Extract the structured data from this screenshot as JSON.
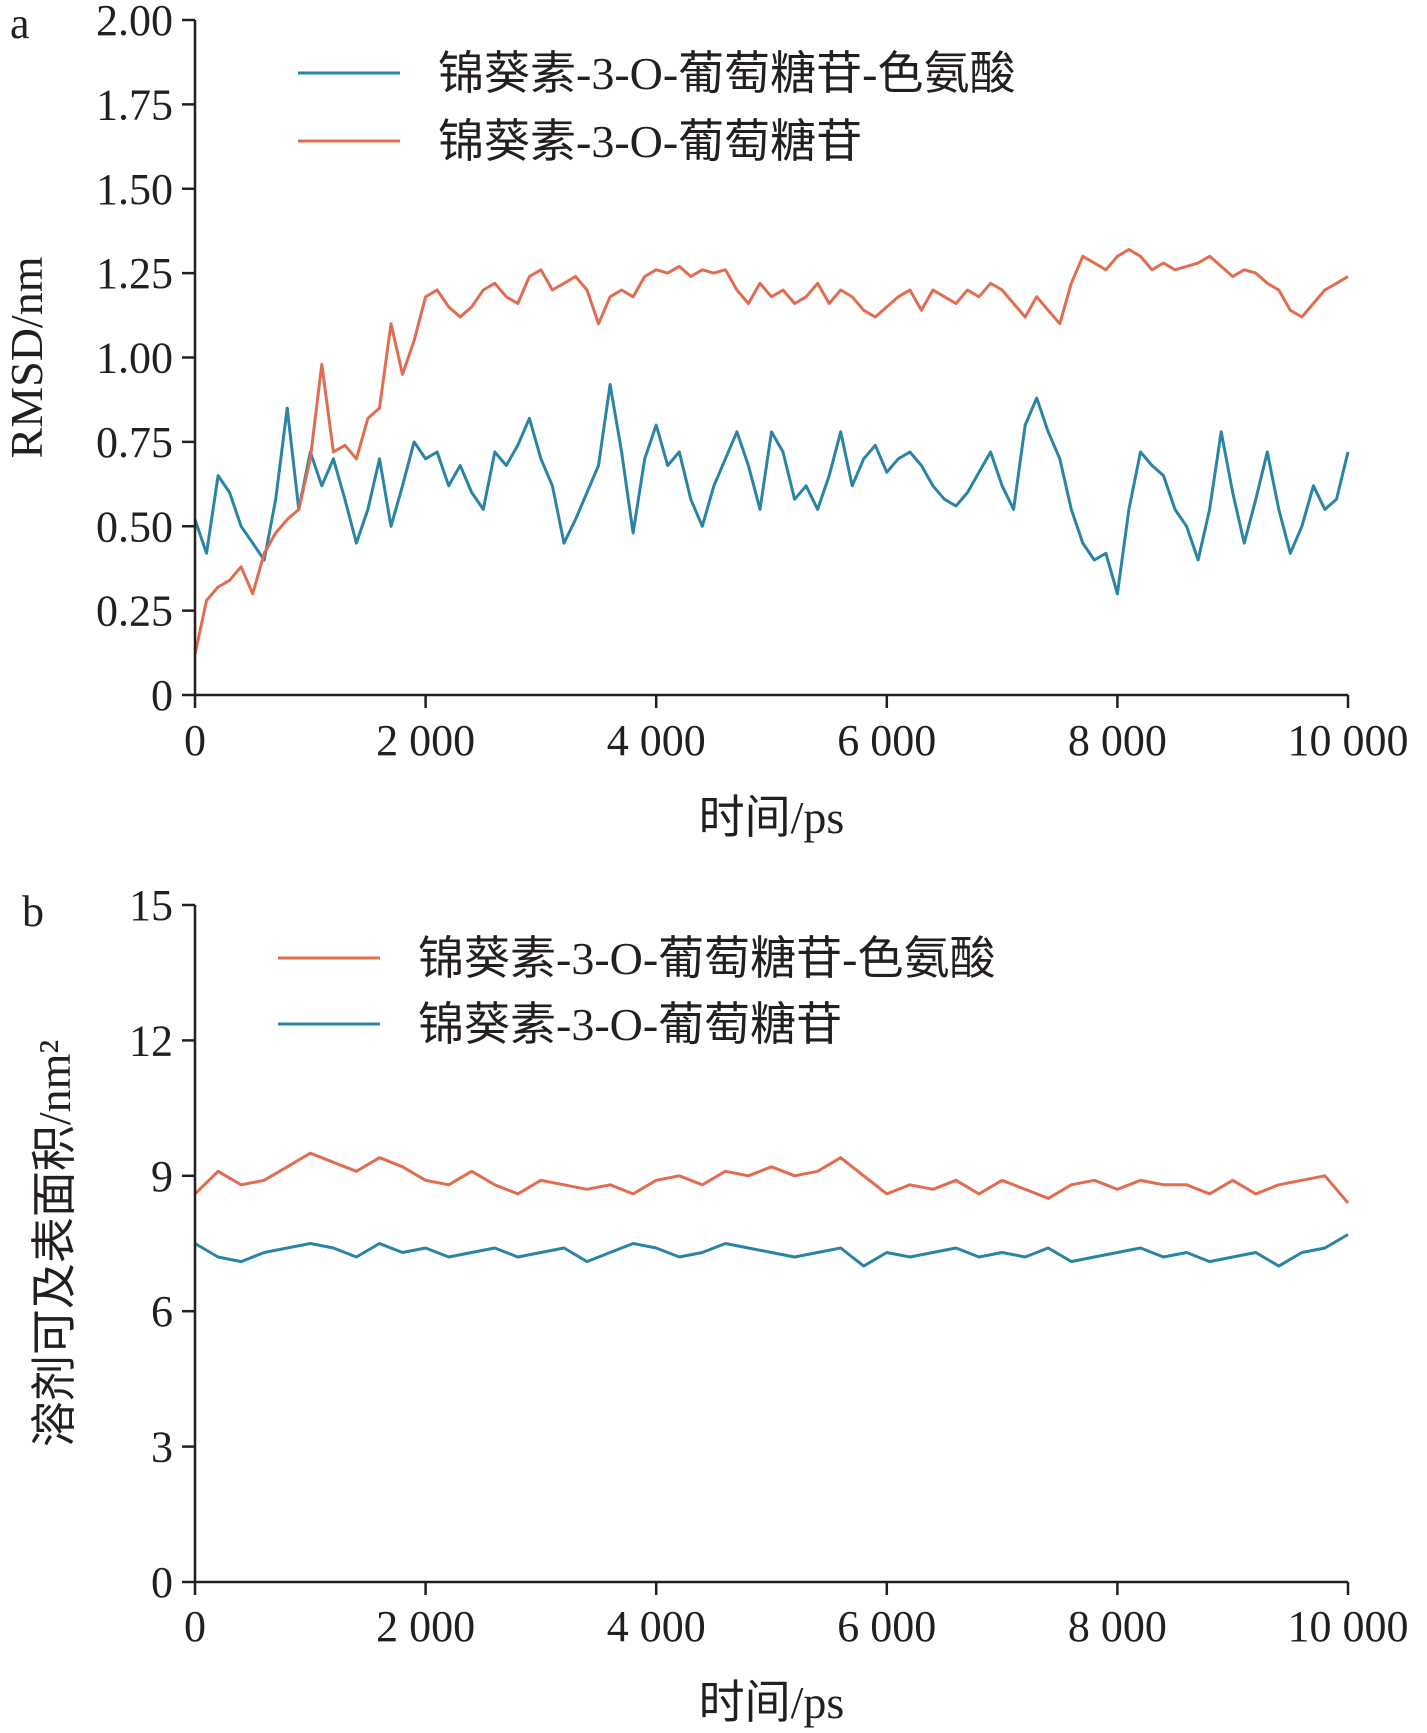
{
  "colors": {
    "blue": "#2a84a6",
    "orange": "#e26c4f",
    "axis": "#231f20"
  },
  "chart_data": [
    {
      "type": "line",
      "panel_label": "a",
      "xlabel": "时间/ps",
      "ylabel": "RMSD/nm",
      "xlim": [
        0,
        10000
      ],
      "ylim": [
        0,
        2.0
      ],
      "x_ticks": [
        0,
        2000,
        4000,
        6000,
        8000,
        10000
      ],
      "x_tick_labels": [
        "0",
        "2 000",
        "4 000",
        "6 000",
        "8 000",
        "10 000"
      ],
      "y_ticks": [
        0,
        0.25,
        0.5,
        0.75,
        1.0,
        1.25,
        1.5,
        1.75,
        2.0
      ],
      "y_tick_labels": [
        "0",
        "0.25",
        "0.50",
        "0.75",
        "1.00",
        "1.25",
        "1.50",
        "1.75",
        "2.00"
      ],
      "grid": false,
      "legend_position": "top",
      "series": [
        {
          "name": "锦葵素-3-O-葡萄糖苷-色氨酸",
          "color": "#2a84a6",
          "x": [
            0,
            100,
            200,
            300,
            400,
            500,
            600,
            700,
            800,
            900,
            1000,
            1100,
            1200,
            1300,
            1400,
            1500,
            1600,
            1700,
            1800,
            1900,
            2000,
            2100,
            2200,
            2300,
            2400,
            2500,
            2600,
            2700,
            2800,
            2900,
            3000,
            3100,
            3200,
            3300,
            3400,
            3500,
            3600,
            3700,
            3800,
            3900,
            4000,
            4100,
            4200,
            4300,
            4400,
            4500,
            4600,
            4700,
            4800,
            4900,
            5000,
            5100,
            5200,
            5300,
            5400,
            5500,
            5600,
            5700,
            5800,
            5900,
            6000,
            6100,
            6200,
            6300,
            6400,
            6500,
            6600,
            6700,
            6800,
            6900,
            7000,
            7100,
            7200,
            7300,
            7400,
            7500,
            7600,
            7700,
            7800,
            7900,
            8000,
            8100,
            8200,
            8300,
            8400,
            8500,
            8600,
            8700,
            8800,
            8900,
            9000,
            9100,
            9200,
            9300,
            9400,
            9500,
            9600,
            9700,
            9800,
            9900,
            10000
          ],
          "y": [
            0.52,
            0.42,
            0.65,
            0.6,
            0.5,
            0.45,
            0.4,
            0.58,
            0.85,
            0.55,
            0.72,
            0.62,
            0.7,
            0.58,
            0.45,
            0.55,
            0.7,
            0.5,
            0.62,
            0.75,
            0.7,
            0.72,
            0.62,
            0.68,
            0.6,
            0.55,
            0.72,
            0.68,
            0.74,
            0.82,
            0.7,
            0.62,
            0.45,
            0.52,
            0.6,
            0.68,
            0.92,
            0.72,
            0.48,
            0.7,
            0.8,
            0.68,
            0.72,
            0.58,
            0.5,
            0.62,
            0.7,
            0.78,
            0.68,
            0.55,
            0.78,
            0.72,
            0.58,
            0.62,
            0.55,
            0.65,
            0.78,
            0.62,
            0.7,
            0.74,
            0.66,
            0.7,
            0.72,
            0.68,
            0.62,
            0.58,
            0.56,
            0.6,
            0.66,
            0.72,
            0.62,
            0.55,
            0.8,
            0.88,
            0.78,
            0.7,
            0.55,
            0.45,
            0.4,
            0.42,
            0.3,
            0.55,
            0.72,
            0.68,
            0.65,
            0.55,
            0.5,
            0.4,
            0.55,
            0.78,
            0.6,
            0.45,
            0.58,
            0.72,
            0.55,
            0.42,
            0.5,
            0.62,
            0.55,
            0.58,
            0.72
          ]
        },
        {
          "name": "锦葵素-3-O-葡萄糖苷",
          "color": "#e26c4f",
          "x": [
            0,
            100,
            200,
            300,
            400,
            500,
            600,
            700,
            800,
            900,
            1000,
            1100,
            1200,
            1300,
            1400,
            1500,
            1600,
            1700,
            1800,
            1900,
            2000,
            2100,
            2200,
            2300,
            2400,
            2500,
            2600,
            2700,
            2800,
            2900,
            3000,
            3100,
            3200,
            3300,
            3400,
            3500,
            3600,
            3700,
            3800,
            3900,
            4000,
            4100,
            4200,
            4300,
            4400,
            4500,
            4600,
            4700,
            4800,
            4900,
            5000,
            5100,
            5200,
            5300,
            5400,
            5500,
            5600,
            5700,
            5800,
            5900,
            6000,
            6100,
            6200,
            6300,
            6400,
            6500,
            6600,
            6700,
            6800,
            6900,
            7000,
            7100,
            7200,
            7300,
            7400,
            7500,
            7600,
            7700,
            7800,
            7900,
            8000,
            8100,
            8200,
            8300,
            8400,
            8500,
            8600,
            8700,
            8800,
            8900,
            9000,
            9100,
            9200,
            9300,
            9400,
            9500,
            9600,
            9700,
            9800,
            9900,
            10000
          ],
          "y": [
            0.12,
            0.28,
            0.32,
            0.34,
            0.38,
            0.3,
            0.42,
            0.48,
            0.52,
            0.55,
            0.7,
            0.98,
            0.72,
            0.74,
            0.7,
            0.82,
            0.85,
            1.1,
            0.95,
            1.05,
            1.18,
            1.2,
            1.15,
            1.12,
            1.15,
            1.2,
            1.22,
            1.18,
            1.16,
            1.24,
            1.26,
            1.2,
            1.22,
            1.24,
            1.2,
            1.1,
            1.18,
            1.2,
            1.18,
            1.24,
            1.26,
            1.25,
            1.27,
            1.24,
            1.26,
            1.25,
            1.26,
            1.2,
            1.16,
            1.22,
            1.18,
            1.2,
            1.16,
            1.18,
            1.22,
            1.16,
            1.2,
            1.18,
            1.14,
            1.12,
            1.15,
            1.18,
            1.2,
            1.14,
            1.2,
            1.18,
            1.16,
            1.2,
            1.18,
            1.22,
            1.2,
            1.16,
            1.12,
            1.18,
            1.14,
            1.1,
            1.22,
            1.3,
            1.28,
            1.26,
            1.3,
            1.32,
            1.3,
            1.26,
            1.28,
            1.26,
            1.27,
            1.28,
            1.3,
            1.27,
            1.24,
            1.26,
            1.25,
            1.22,
            1.2,
            1.14,
            1.12,
            1.16,
            1.2,
            1.22,
            1.24
          ]
        }
      ]
    },
    {
      "type": "line",
      "panel_label": "b",
      "xlabel": "时间/ps",
      "ylabel": "溶剂可及表面积/nm²",
      "xlim": [
        0,
        10000
      ],
      "ylim": [
        0,
        15
      ],
      "x_ticks": [
        0,
        2000,
        4000,
        6000,
        8000,
        10000
      ],
      "x_tick_labels": [
        "0",
        "2 000",
        "4 000",
        "6 000",
        "8 000",
        "10 000"
      ],
      "y_ticks": [
        0,
        3,
        6,
        9,
        12,
        15
      ],
      "y_tick_labels": [
        "0",
        "3",
        "6",
        "9",
        "12",
        "15"
      ],
      "grid": false,
      "legend_position": "top",
      "series": [
        {
          "name": "锦葵素-3-O-葡萄糖苷-色氨酸",
          "color": "#e26c4f",
          "x": [
            0,
            200,
            400,
            600,
            800,
            1000,
            1200,
            1400,
            1600,
            1800,
            2000,
            2200,
            2400,
            2600,
            2800,
            3000,
            3200,
            3400,
            3600,
            3800,
            4000,
            4200,
            4400,
            4600,
            4800,
            5000,
            5200,
            5400,
            5600,
            5800,
            6000,
            6200,
            6400,
            6600,
            6800,
            7000,
            7200,
            7400,
            7600,
            7800,
            8000,
            8200,
            8400,
            8600,
            8800,
            9000,
            9200,
            9400,
            9600,
            9800,
            10000
          ],
          "y": [
            8.6,
            9.1,
            8.8,
            8.9,
            9.2,
            9.5,
            9.3,
            9.1,
            9.4,
            9.2,
            8.9,
            8.8,
            9.1,
            8.8,
            8.6,
            8.9,
            8.8,
            8.7,
            8.8,
            8.6,
            8.9,
            9.0,
            8.8,
            9.1,
            9.0,
            9.2,
            9.0,
            9.1,
            9.4,
            9.0,
            8.6,
            8.8,
            8.7,
            8.9,
            8.6,
            8.9,
            8.7,
            8.5,
            8.8,
            8.9,
            8.7,
            8.9,
            8.8,
            8.8,
            8.6,
            8.9,
            8.6,
            8.8,
            8.9,
            9.0,
            8.4
          ]
        },
        {
          "name": "锦葵素-3-O-葡萄糖苷",
          "color": "#2a84a6",
          "x": [
            0,
            200,
            400,
            600,
            800,
            1000,
            1200,
            1400,
            1600,
            1800,
            2000,
            2200,
            2400,
            2600,
            2800,
            3000,
            3200,
            3400,
            3600,
            3800,
            4000,
            4200,
            4400,
            4600,
            4800,
            5000,
            5200,
            5400,
            5600,
            5800,
            6000,
            6200,
            6400,
            6600,
            6800,
            7000,
            7200,
            7400,
            7600,
            7800,
            8000,
            8200,
            8400,
            8600,
            8800,
            9000,
            9200,
            9400,
            9600,
            9800,
            10000
          ],
          "y": [
            7.5,
            7.2,
            7.1,
            7.3,
            7.4,
            7.5,
            7.4,
            7.2,
            7.5,
            7.3,
            7.4,
            7.2,
            7.3,
            7.4,
            7.2,
            7.3,
            7.4,
            7.1,
            7.3,
            7.5,
            7.4,
            7.2,
            7.3,
            7.5,
            7.4,
            7.3,
            7.2,
            7.3,
            7.4,
            7.0,
            7.3,
            7.2,
            7.3,
            7.4,
            7.2,
            7.3,
            7.2,
            7.4,
            7.1,
            7.2,
            7.3,
            7.4,
            7.2,
            7.3,
            7.1,
            7.2,
            7.3,
            7.0,
            7.3,
            7.4,
            7.7
          ]
        }
      ]
    }
  ]
}
